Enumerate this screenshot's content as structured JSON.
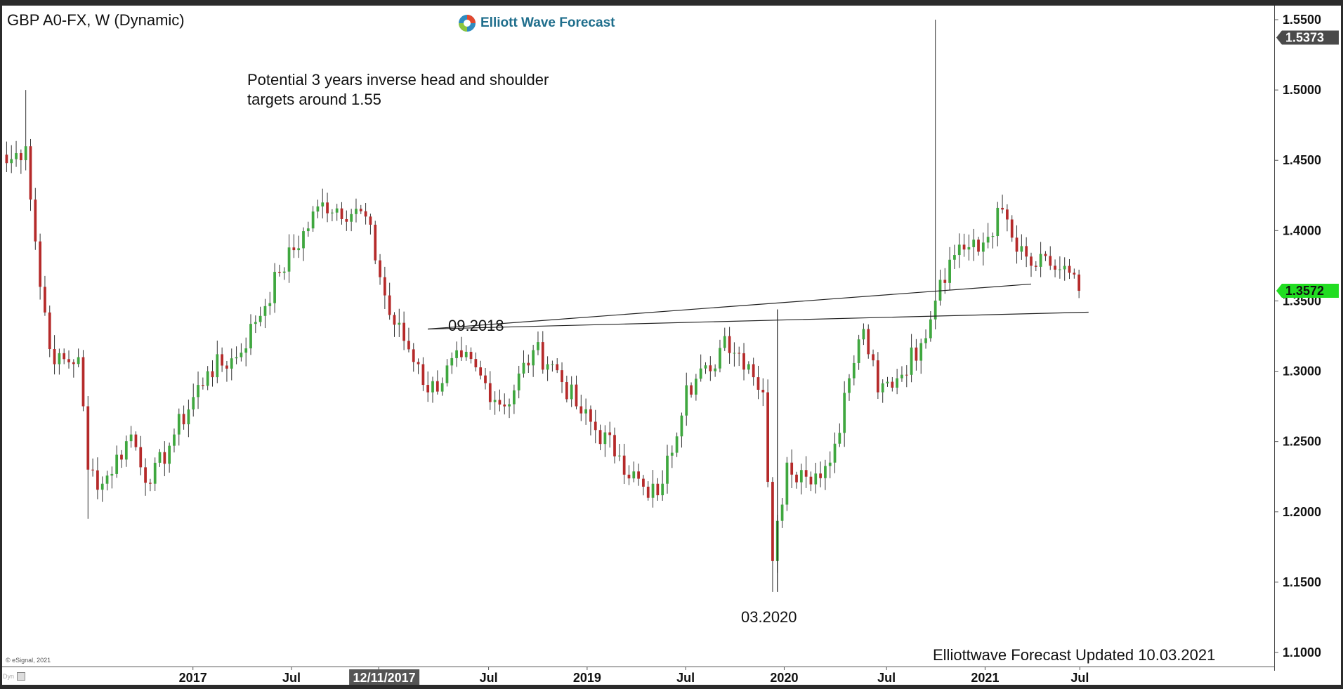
{
  "header": {
    "title": "GBP A0-FX, W (Dynamic)",
    "logo_text": "Elliott Wave Forecast"
  },
  "annotation": {
    "line1": "Potential 3 years inverse head and shoulder",
    "line2": "targets around 1.55"
  },
  "labels": {
    "left_shoulder": "09.2018",
    "head": "03.2020"
  },
  "footer": {
    "updated": "Elliottwave Forecast Updated 10.03.2021",
    "copyright": "© eSignal, 2021",
    "corner": "Dyn"
  },
  "colors": {
    "up": "#3fa73f",
    "down": "#b52a2a",
    "wick": "#333333",
    "last_price_badge": "#22dd22",
    "target_badge": "#4a4a4a",
    "highlight_tick_bg": "#555555"
  },
  "chart_data": {
    "type": "candlestick",
    "title": "GBP A0-FX, W (Dynamic)",
    "interval": "weekly",
    "ylim": [
      1.09,
      1.56
    ],
    "y_ticks": [
      "1.5500",
      "1.5000",
      "1.4500",
      "1.4000",
      "1.3500",
      "1.3000",
      "1.2500",
      "1.2000",
      "1.1500",
      "1.1000"
    ],
    "x_ticks": [
      "2017",
      "Jul",
      "12/11/2017",
      "Jul",
      "2019",
      "Jul",
      "2020",
      "Jul",
      "2021",
      "Jul"
    ],
    "highlighted_x_tick": "12/11/2017",
    "badges": [
      {
        "label": "1.5373",
        "value": 1.5373,
        "kind": "target"
      },
      {
        "label": "1.3572",
        "value": 1.3572,
        "kind": "last"
      }
    ],
    "anchors": [
      {
        "week": 0,
        "price": 1.448
      },
      {
        "week": 4,
        "price": 1.46
      },
      {
        "week": 7,
        "price": 1.36
      },
      {
        "week": 10,
        "price": 1.305
      },
      {
        "week": 15,
        "price": 1.31
      },
      {
        "week": 17,
        "price": 1.23
      },
      {
        "week": 20,
        "price": 1.22
      },
      {
        "week": 26,
        "price": 1.255
      },
      {
        "week": 30,
        "price": 1.22
      },
      {
        "week": 35,
        "price": 1.255
      },
      {
        "week": 42,
        "price": 1.3
      },
      {
        "week": 48,
        "price": 1.31
      },
      {
        "week": 52,
        "price": 1.335
      },
      {
        "week": 57,
        "price": 1.37
      },
      {
        "week": 66,
        "price": 1.42
      },
      {
        "week": 75,
        "price": 1.41
      },
      {
        "week": 80,
        "price": 1.34
      },
      {
        "week": 86,
        "price": 1.305
      },
      {
        "week": 88,
        "price": 1.285
      },
      {
        "week": 95,
        "price": 1.31
      },
      {
        "week": 104,
        "price": 1.275
      },
      {
        "week": 110,
        "price": 1.315
      },
      {
        "week": 114,
        "price": 1.305
      },
      {
        "week": 120,
        "price": 1.27
      },
      {
        "week": 128,
        "price": 1.24
      },
      {
        "week": 134,
        "price": 1.21
      },
      {
        "week": 137,
        "price": 1.22
      },
      {
        "week": 142,
        "price": 1.29
      },
      {
        "week": 147,
        "price": 1.3
      },
      {
        "week": 150,
        "price": 1.325
      },
      {
        "week": 155,
        "price": 1.305
      },
      {
        "week": 158,
        "price": 1.285
      },
      {
        "week": 160,
        "price": 1.165
      },
      {
        "week": 163,
        "price": 1.235
      },
      {
        "week": 167,
        "price": 1.225
      },
      {
        "week": 172,
        "price": 1.235
      },
      {
        "week": 176,
        "price": 1.295
      },
      {
        "week": 179,
        "price": 1.33
      },
      {
        "week": 182,
        "price": 1.285
      },
      {
        "week": 186,
        "price": 1.295
      },
      {
        "week": 191,
        "price": 1.32
      },
      {
        "week": 195,
        "price": 1.365
      },
      {
        "week": 199,
        "price": 1.39
      },
      {
        "week": 203,
        "price": 1.385
      },
      {
        "week": 208,
        "price": 1.415
      },
      {
        "week": 211,
        "price": 1.385
      },
      {
        "week": 214,
        "price": 1.375
      },
      {
        "week": 218,
        "price": 1.375
      },
      {
        "week": 222,
        "price": 1.37
      },
      {
        "week": 224,
        "price": 1.3572
      }
    ],
    "extreme_wicks": [
      {
        "week": 4,
        "high": 1.5
      },
      {
        "week": 17,
        "low": 1.195
      },
      {
        "week": 160,
        "low": 1.143
      },
      {
        "week": 194,
        "high": 1.55
      }
    ],
    "trendlines": [
      {
        "from": {
          "week": 88,
          "price": 1.33
        },
        "to": {
          "week": 226,
          "price": 1.342
        }
      },
      {
        "from": {
          "week": 88,
          "price": 1.33
        },
        "to": {
          "week": 214,
          "price": 1.362
        }
      }
    ],
    "vertical_marks": [
      {
        "week": 90,
        "top": 1.33,
        "bottom": 1.33
      },
      {
        "week": 161,
        "top": 1.344,
        "bottom": 1.143
      }
    ]
  }
}
